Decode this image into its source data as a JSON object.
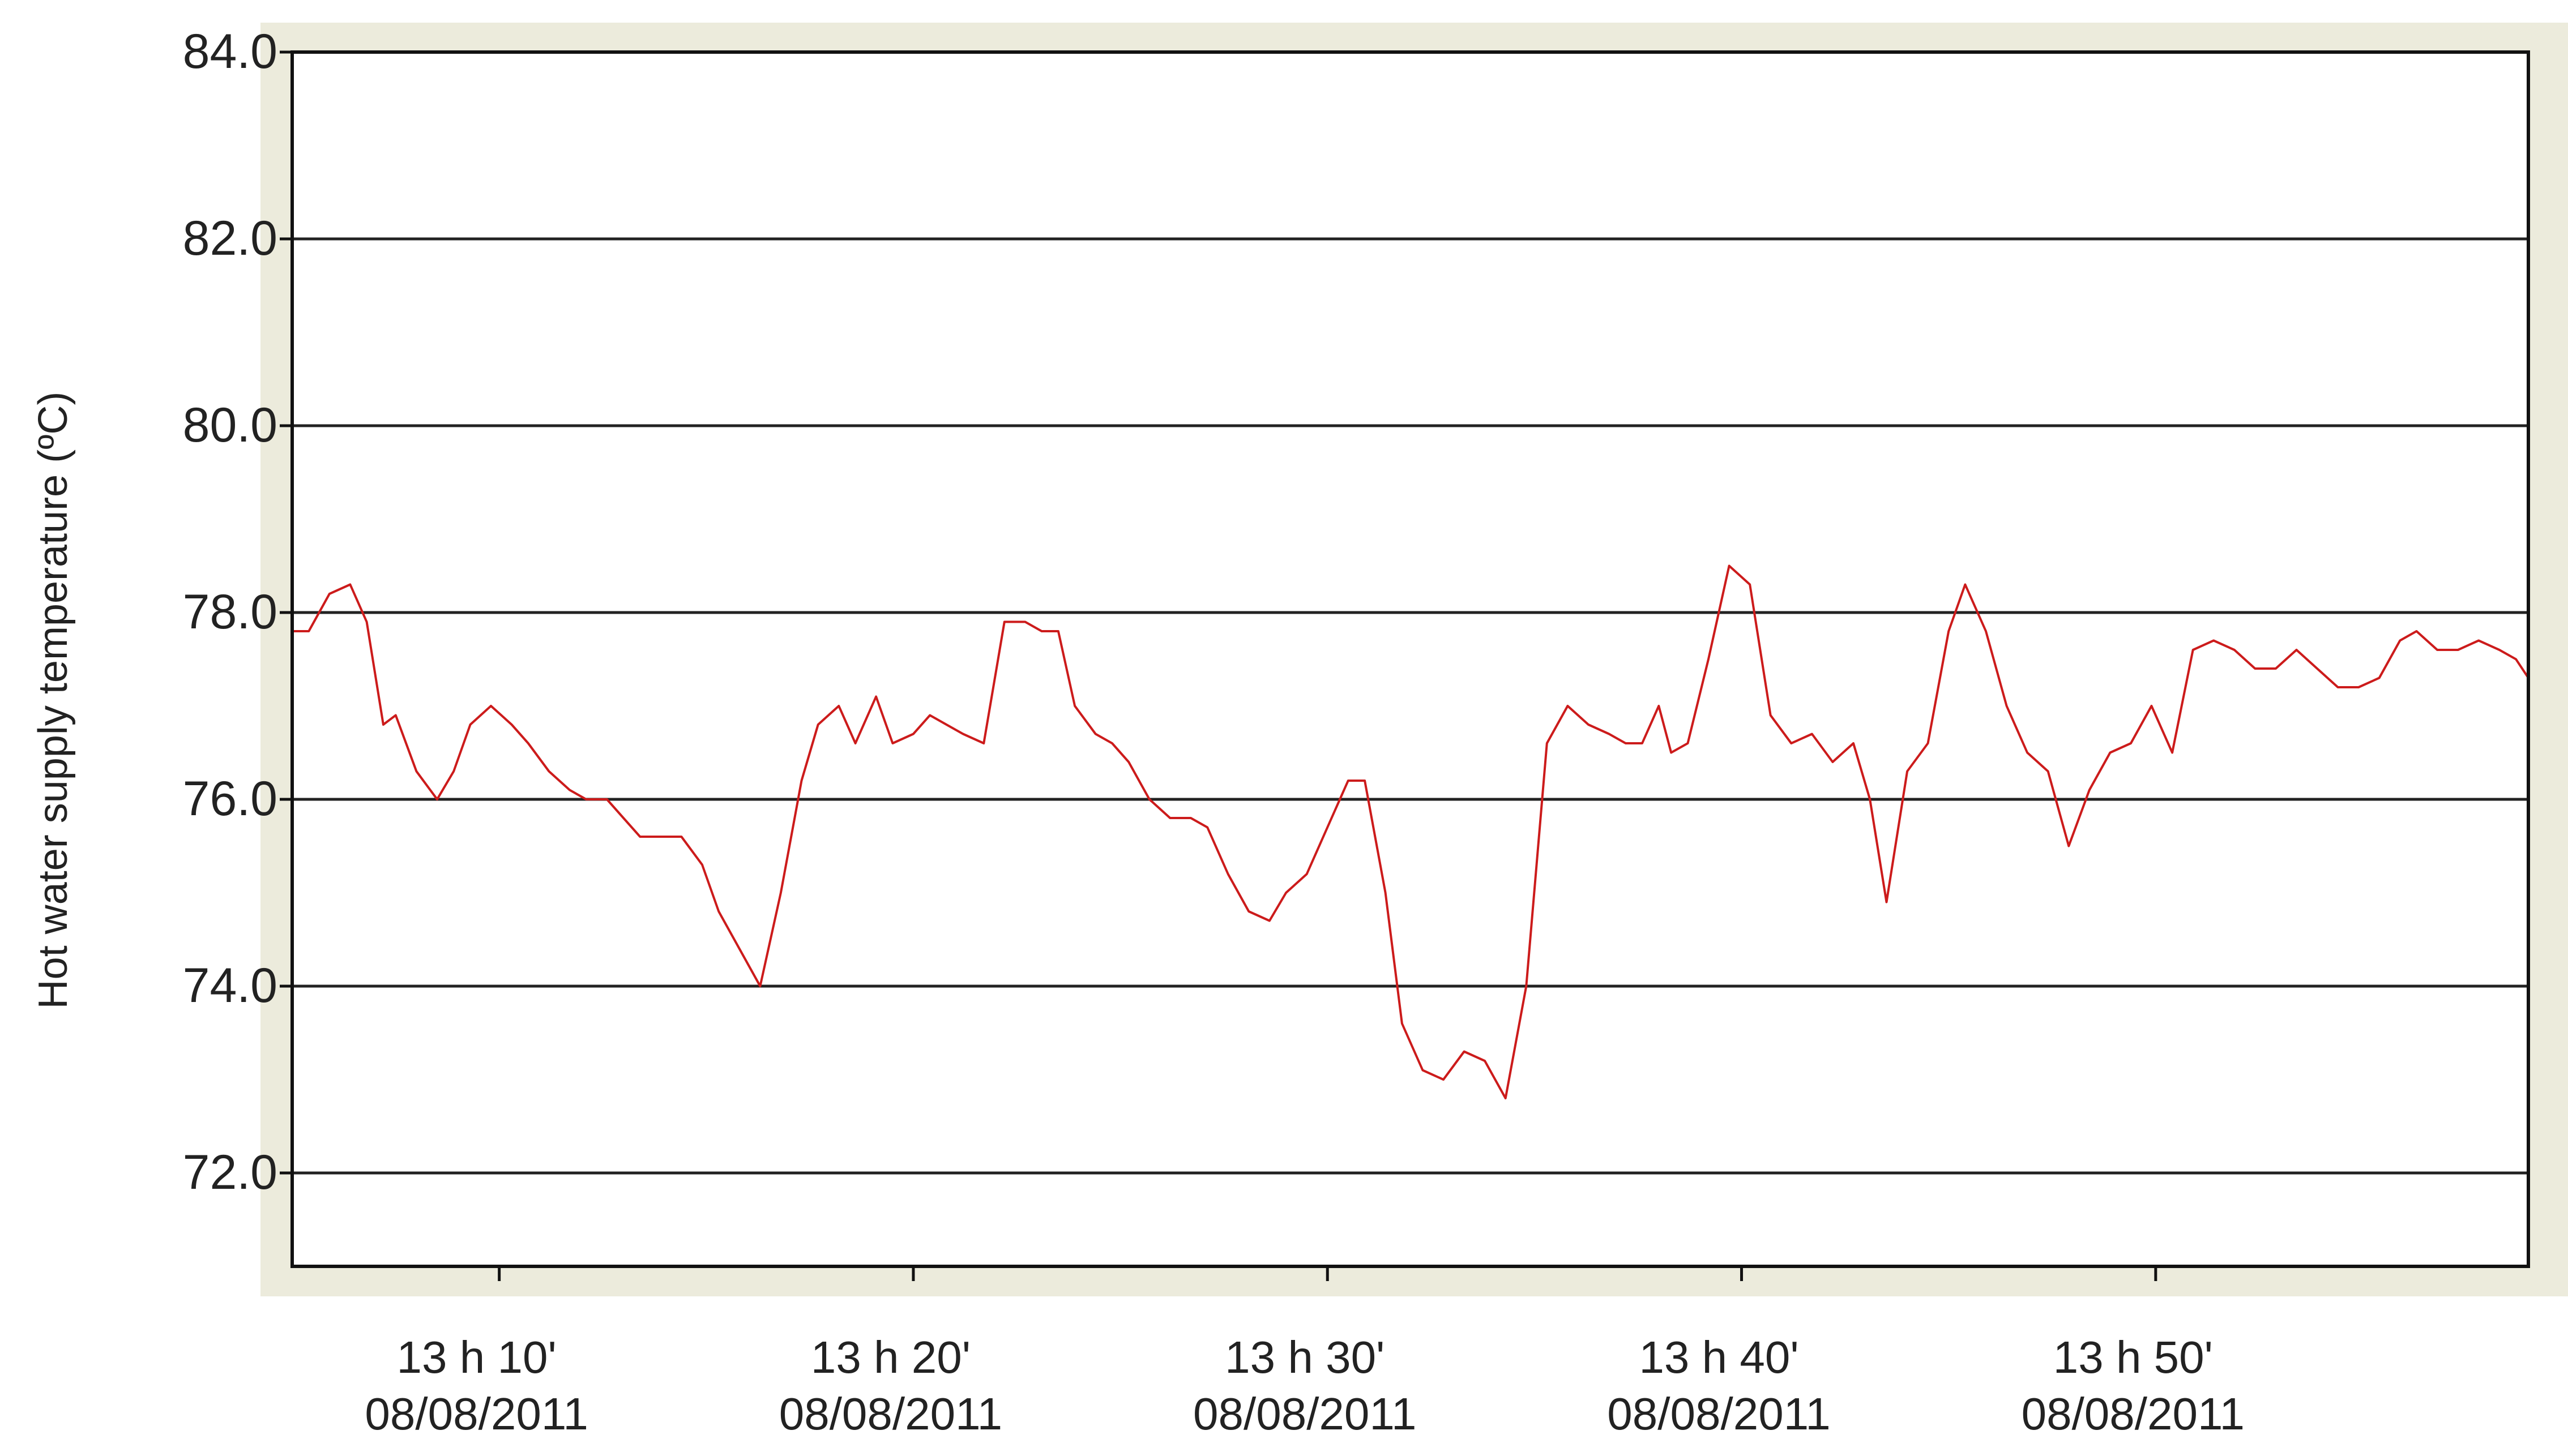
{
  "chart_data": {
    "type": "line",
    "title": "",
    "xlabel": "",
    "ylabel": "Hot  water  supply  temperature  (ºC)",
    "ylim": [
      71.0,
      84.0
    ],
    "xlim": [
      5.0,
      59.0
    ],
    "y_ticks": [
      {
        "value": 84.0,
        "label": "84.0"
      },
      {
        "value": 82.0,
        "label": "82.0"
      },
      {
        "value": 80.0,
        "label": "80.0"
      },
      {
        "value": 78.0,
        "label": "78.0"
      },
      {
        "value": 76.0,
        "label": "76.0"
      },
      {
        "value": 74.0,
        "label": "74.0"
      },
      {
        "value": 72.0,
        "label": "72.0"
      }
    ],
    "x_ticks": [
      {
        "value": 10,
        "time": "13 h 10'",
        "date": "08/08/2011"
      },
      {
        "value": 20,
        "time": "13 h 20'",
        "date": "08/08/2011"
      },
      {
        "value": 30,
        "time": "13 h 30'",
        "date": "08/08/2011"
      },
      {
        "value": 40,
        "time": "13 h 40'",
        "date": "08/08/2011"
      },
      {
        "value": 50,
        "time": "13 h 50'",
        "date": "08/08/2011"
      }
    ],
    "grid": "horizontal",
    "legend": "none",
    "colors": {
      "line": "#cc1b1b",
      "frame_bg": "#ecebdc",
      "plot_bg": "#ffffff",
      "grid": "#222222"
    },
    "series": [
      {
        "x": [
          5.0,
          5.4,
          5.9,
          6.4,
          6.8,
          7.2,
          7.5,
          8.0,
          8.5,
          8.9,
          9.3,
          9.8,
          10.3,
          10.7,
          11.2,
          11.7,
          12.1,
          12.6,
          13.0,
          13.4,
          13.9,
          14.4,
          14.9,
          15.3,
          15.8,
          16.3,
          16.8,
          17.3,
          17.7,
          18.2,
          18.6,
          19.1,
          19.5,
          20.0,
          20.4,
          20.8,
          21.2,
          21.7,
          22.2,
          22.7,
          23.1,
          23.5,
          23.9,
          24.4,
          24.8,
          25.2,
          25.7,
          26.2,
          26.7,
          27.1,
          27.6,
          28.1,
          28.6,
          29.0,
          29.5,
          30.0,
          30.5,
          30.9,
          31.4,
          31.8,
          32.3,
          32.8,
          33.3,
          33.8,
          34.3,
          34.8,
          35.3,
          35.8,
          36.3,
          36.8,
          37.2,
          37.6,
          38.0,
          38.3,
          38.7,
          39.2,
          39.7,
          40.2,
          40.7,
          41.2,
          41.7,
          42.2,
          42.7,
          43.1,
          43.5,
          44.0,
          44.5,
          45.0,
          45.4,
          45.9,
          46.4,
          46.9,
          47.4,
          47.9,
          48.4,
          48.9,
          49.4,
          49.9,
          50.4,
          50.9,
          51.4,
          51.9,
          52.4,
          52.9,
          53.4,
          53.9,
          54.4,
          54.9,
          55.4,
          55.9,
          56.3,
          56.8,
          57.3,
          57.8,
          58.3,
          58.7,
          59.0
        ],
        "y": [
          77.8,
          77.8,
          78.2,
          78.3,
          77.9,
          76.8,
          76.9,
          76.3,
          76.0,
          76.3,
          76.8,
          77.0,
          76.8,
          76.6,
          76.3,
          76.1,
          76.0,
          76.0,
          75.8,
          75.6,
          75.6,
          75.6,
          75.3,
          74.8,
          74.4,
          74.0,
          75.0,
          76.2,
          76.8,
          77.0,
          76.6,
          77.1,
          76.6,
          76.7,
          76.9,
          76.8,
          76.7,
          76.6,
          77.9,
          77.9,
          77.8,
          77.8,
          77.0,
          76.7,
          76.6,
          76.4,
          76.0,
          75.8,
          75.8,
          75.7,
          75.2,
          74.8,
          74.7,
          75.0,
          75.2,
          75.7,
          76.2,
          76.2,
          75.0,
          73.6,
          73.1,
          73.0,
          73.3,
          73.2,
          72.8,
          74.0,
          76.6,
          77.0,
          76.8,
          76.7,
          76.6,
          76.6,
          77.0,
          76.5,
          76.6,
          77.5,
          78.5,
          78.3,
          76.9,
          76.6,
          76.7,
          76.4,
          76.6,
          76.0,
          74.9,
          76.3,
          76.6,
          77.8,
          78.3,
          77.8,
          77.0,
          76.5,
          76.3,
          75.5,
          76.1,
          76.5,
          76.6,
          77.0,
          76.5,
          77.6,
          77.7,
          77.6,
          77.4,
          77.4,
          77.6,
          77.4,
          77.2,
          77.2,
          77.3,
          77.7,
          77.8,
          77.6,
          77.6,
          77.7,
          77.6,
          77.5,
          77.3
        ]
      }
    ]
  }
}
